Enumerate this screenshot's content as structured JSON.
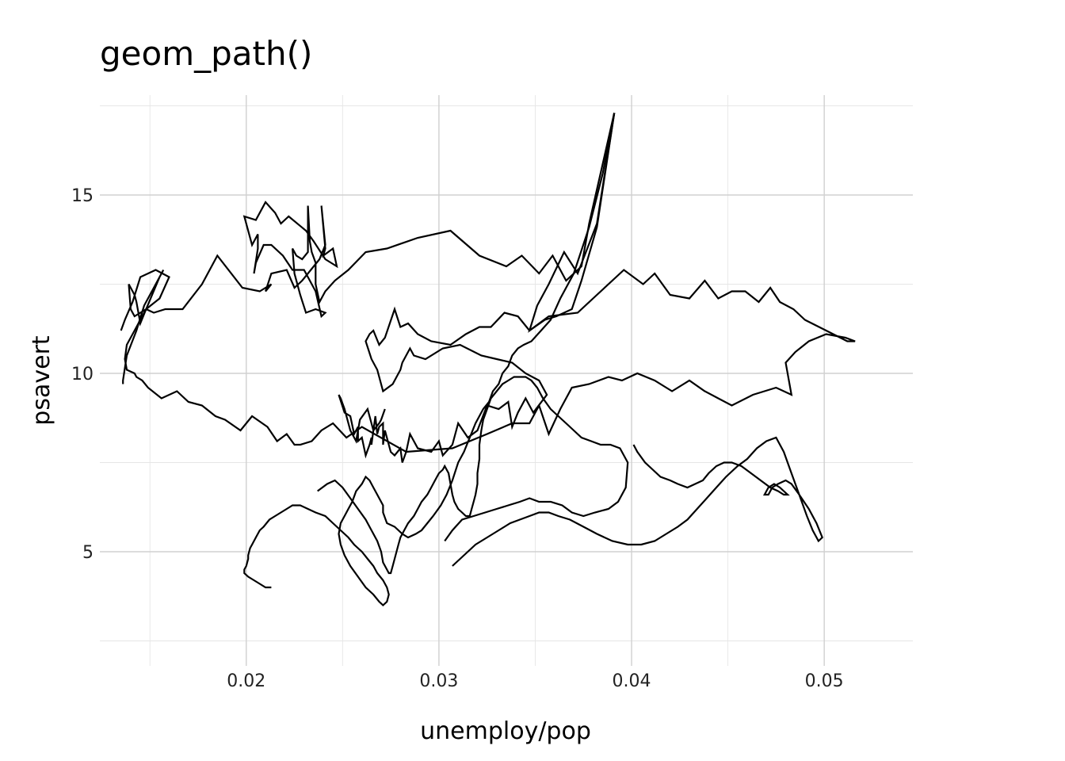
{
  "chart_data": {
    "type": "line",
    "title": "geom_path()",
    "xlabel": "unemploy/pop",
    "ylabel": "psavert",
    "xlim": [
      0.0124,
      0.0546
    ],
    "ylim": [
      1.8,
      17.8
    ],
    "x_ticks": [
      {
        "value": 0.02,
        "label": "0.02"
      },
      {
        "value": 0.03,
        "label": "0.03"
      },
      {
        "value": 0.04,
        "label": "0.04"
      },
      {
        "value": 0.05,
        "label": "0.05"
      }
    ],
    "y_ticks": [
      {
        "value": 5,
        "label": "5"
      },
      {
        "value": 10,
        "label": "10"
      },
      {
        "value": 15,
        "label": "15"
      }
    ],
    "x_minor": [
      0.015,
      0.025,
      0.035,
      0.045
    ],
    "y_minor": [
      2.5,
      7.5,
      12.5,
      17.5
    ],
    "grid": true,
    "legend": "none",
    "series": [
      {
        "color": "#000000",
        "x": [
          0.0391,
          0.0382,
          0.0372,
          0.0365,
          0.0357,
          0.0351,
          0.0347,
          0.0357,
          0.0372,
          0.038,
          0.0396,
          0.0406,
          0.0412,
          0.042,
          0.043,
          0.0438,
          0.0445,
          0.0452,
          0.0459,
          0.0466,
          0.0472,
          0.0477,
          0.0484,
          0.049,
          0.0501,
          0.0512,
          0.0516,
          0.0511,
          0.0501,
          0.0492,
          0.0485,
          0.048,
          0.0483,
          0.0475,
          0.0463,
          0.0452,
          0.0445,
          0.0438,
          0.043,
          0.0421,
          0.0412,
          0.0403,
          0.0395,
          0.0388,
          0.0378,
          0.0369,
          0.0363,
          0.0357,
          0.0352,
          0.0347,
          0.0338,
          0.0325,
          0.0307,
          0.0283,
          0.026,
          0.0252,
          0.0245,
          0.0239,
          0.0234,
          0.0228,
          0.0225,
          0.0221,
          0.0216,
          0.0211,
          0.0203,
          0.0197,
          0.0189,
          0.0184,
          0.0177,
          0.017,
          0.0164,
          0.0156,
          0.0149,
          0.0146,
          0.0143,
          0.0142,
          0.0138,
          0.0137,
          0.0138,
          0.0142,
          0.0148,
          0.0155,
          0.016,
          0.0153,
          0.0145,
          0.0141,
          0.0137,
          0.0135
        ],
        "y": [
          17.3,
          14.2,
          12.8,
          13.4,
          12.5,
          11.9,
          11.2,
          11.6,
          11.7,
          12.1,
          12.9,
          12.5,
          12.8,
          12.2,
          12.1,
          12.6,
          12.1,
          12.3,
          12.3,
          12.0,
          12.4,
          12.0,
          11.8,
          11.5,
          11.2,
          10.9,
          10.9,
          11.0,
          11.1,
          10.9,
          10.6,
          10.3,
          9.4,
          9.6,
          9.4,
          9.1,
          9.3,
          9.5,
          9.8,
          9.5,
          9.8,
          10.0,
          9.8,
          9.9,
          9.7,
          9.6,
          9.0,
          8.3,
          9.1,
          8.6,
          8.6,
          8.3,
          7.9,
          7.8,
          8.5,
          8.2,
          8.6,
          8.4,
          8.1,
          8.0,
          8.0,
          8.3,
          8.1,
          8.5,
          8.8,
          8.4,
          8.7,
          8.8,
          9.1,
          9.2,
          9.5,
          9.3,
          9.6,
          9.8,
          9.9,
          10.0,
          10.1,
          10.4,
          10.8,
          11.2,
          11.8,
          12.1,
          12.7,
          12.9,
          12.7,
          12.0,
          11.5,
          11.2
        ]
      },
      {
        "color": "#000000",
        "x": [
          0.0391,
          0.0378,
          0.0374,
          0.0366,
          0.0359,
          0.0352,
          0.0343,
          0.0335,
          0.0321,
          0.0306,
          0.0289,
          0.0273,
          0.0262,
          0.0253,
          0.0246,
          0.0241,
          0.0238,
          0.0236,
          0.0236,
          0.0234,
          0.0233,
          0.0232,
          0.0232,
          0.0229,
          0.0226,
          0.0224,
          0.0225,
          0.0228,
          0.0231,
          0.0236,
          0.0241,
          0.0239,
          0.0236,
          0.023,
          0.0224,
          0.0219,
          0.0213,
          0.0209,
          0.0205,
          0.0204,
          0.0206,
          0.0206,
          0.0203,
          0.0199,
          0.0199,
          0.0205,
          0.021,
          0.0215,
          0.0218,
          0.0222,
          0.0231,
          0.0235,
          0.0241,
          0.0247,
          0.0245,
          0.024,
          0.0241,
          0.0239,
          0.0241,
          0.0238,
          0.0229,
          0.0225,
          0.0221,
          0.0213,
          0.021,
          0.0213,
          0.0207,
          0.0198,
          0.0185,
          0.0177,
          0.0167,
          0.0158,
          0.0152,
          0.0148,
          0.0145,
          0.0143,
          0.0142,
          0.0139,
          0.014,
          0.0142,
          0.0148,
          0.0155,
          0.0157,
          0.0152,
          0.0147,
          0.0143,
          0.0138,
          0.0136,
          0.0136
        ],
        "y": [
          17.3,
          14.2,
          13.0,
          12.6,
          13.3,
          12.8,
          13.3,
          13.0,
          13.3,
          14.0,
          13.8,
          13.5,
          13.4,
          12.9,
          12.6,
          12.3,
          12.0,
          12.5,
          13.1,
          13.4,
          13.7,
          14.7,
          13.4,
          13.2,
          13.3,
          13.5,
          12.8,
          12.2,
          11.7,
          11.8,
          11.7,
          11.6,
          12.3,
          12.9,
          12.9,
          13.3,
          13.6,
          13.6,
          13.1,
          12.8,
          13.5,
          13.9,
          13.6,
          14.4,
          14.4,
          14.3,
          14.8,
          14.5,
          14.2,
          14.4,
          14.0,
          13.7,
          13.2,
          13.0,
          13.5,
          13.3,
          13.5,
          14.7,
          13.6,
          13.2,
          12.6,
          12.4,
          12.9,
          12.8,
          12.3,
          12.5,
          12.3,
          12.4,
          13.3,
          12.5,
          11.8,
          11.8,
          11.7,
          11.8,
          11.4,
          12.0,
          12.2,
          12.5,
          11.8,
          11.6,
          11.8,
          12.7,
          12.9,
          12.4,
          11.9,
          11.2,
          10.5,
          9.8,
          9.7
        ]
      },
      {
        "color": "#000000",
        "x": [
          0.0391,
          0.0382,
          0.0374,
          0.0369,
          0.0361,
          0.0355,
          0.0347,
          0.0341,
          0.0334,
          0.0327,
          0.0321,
          0.0314,
          0.0306,
          0.0296,
          0.0289,
          0.0284,
          0.028,
          0.0277,
          0.0272,
          0.0269,
          0.0266,
          0.0264,
          0.0262,
          0.0265,
          0.0268,
          0.0271,
          0.0276,
          0.028,
          0.0281,
          0.0285,
          0.0287,
          0.0293,
          0.0302,
          0.0311,
          0.0322,
          0.033,
          0.0338,
          0.0345,
          0.0352,
          0.0356,
          0.0349,
          0.0345,
          0.0341,
          0.0338,
          0.0336,
          0.0331,
          0.0325,
          0.032,
          0.0315,
          0.031,
          0.0307,
          0.0302,
          0.03,
          0.0296,
          0.0289,
          0.0285,
          0.0283,
          0.0281,
          0.028,
          0.0277,
          0.0275,
          0.0272,
          0.0271,
          0.0271,
          0.0269,
          0.0268,
          0.0267,
          0.0266,
          0.0265,
          0.0265,
          0.0264,
          0.0262,
          0.026,
          0.0258,
          0.0258,
          0.0256,
          0.0254,
          0.0251,
          0.0248,
          0.0249,
          0.0251,
          0.0254,
          0.0257,
          0.0259,
          0.0263,
          0.0266,
          0.0269,
          0.027,
          0.0272
        ],
        "y": [
          17.3,
          14.1,
          12.6,
          11.8,
          11.6,
          11.5,
          11.2,
          11.6,
          11.7,
          11.3,
          11.3,
          11.1,
          10.8,
          10.9,
          11.1,
          11.4,
          11.3,
          11.8,
          11.0,
          10.8,
          11.2,
          11.1,
          10.9,
          10.4,
          10.1,
          9.5,
          9.7,
          10.1,
          10.3,
          10.7,
          10.5,
          10.4,
          10.7,
          10.8,
          10.5,
          10.4,
          10.3,
          10.0,
          9.8,
          9.4,
          8.9,
          9.3,
          8.9,
          8.5,
          9.2,
          9.0,
          9.1,
          8.4,
          8.2,
          8.6,
          8.0,
          7.7,
          8.1,
          7.8,
          7.9,
          8.3,
          7.8,
          7.5,
          7.9,
          7.7,
          7.8,
          8.4,
          8.0,
          8.6,
          8.5,
          8.3,
          8.8,
          8.4,
          8.0,
          8.2,
          8.0,
          7.7,
          8.2,
          8.1,
          8.5,
          8.3,
          8.8,
          8.9,
          9.4,
          9.3,
          9.0,
          8.4,
          8.1,
          8.7,
          9.0,
          8.4,
          8.6,
          8.7,
          9.0
        ]
      },
      {
        "color": "#000000",
        "x": [
          0.0391,
          0.0385,
          0.0378,
          0.037,
          0.0363,
          0.0358,
          0.0353,
          0.0348,
          0.0344,
          0.0341,
          0.0338,
          0.0336,
          0.0333,
          0.0331,
          0.0328,
          0.0326,
          0.0323,
          0.0319,
          0.0316,
          0.0313,
          0.031,
          0.0307,
          0.0304,
          0.0301,
          0.0297,
          0.0294,
          0.0291,
          0.0288,
          0.0284,
          0.0281,
          0.0277,
          0.0273,
          0.0271,
          0.0271,
          0.0268,
          0.0266,
          0.0264,
          0.0262,
          0.026,
          0.0257,
          0.0255,
          0.0253,
          0.0251,
          0.0249,
          0.0248,
          0.0249,
          0.0251,
          0.0254,
          0.0258,
          0.0262,
          0.0266,
          0.0269,
          0.0271,
          0.0273,
          0.0274,
          0.0273,
          0.0271,
          0.0268,
          0.0266,
          0.0263,
          0.026,
          0.0256,
          0.0253,
          0.0249,
          0.0245,
          0.0241,
          0.0236,
          0.0232,
          0.0228,
          0.0224,
          0.0221,
          0.0218,
          0.0215,
          0.0212,
          0.0209,
          0.0207,
          0.0205,
          0.0203,
          0.0202,
          0.0201,
          0.0201,
          0.02,
          0.0199,
          0.0199,
          0.0201,
          0.0204,
          0.0207,
          0.021,
          0.0213
        ],
        "y": [
          17.3,
          15.6,
          14.1,
          12.8,
          12.1,
          11.5,
          11.2,
          10.9,
          10.8,
          10.7,
          10.5,
          10.2,
          10.0,
          9.7,
          9.5,
          9.2,
          9.0,
          8.6,
          8.2,
          7.8,
          7.5,
          7.0,
          6.6,
          6.3,
          6.0,
          5.8,
          5.6,
          5.5,
          5.4,
          5.5,
          5.7,
          5.8,
          6.1,
          6.3,
          6.6,
          6.8,
          7.0,
          7.1,
          6.9,
          6.7,
          6.4,
          6.2,
          6.0,
          5.8,
          5.5,
          5.2,
          4.9,
          4.6,
          4.3,
          4.0,
          3.8,
          3.6,
          3.5,
          3.6,
          3.8,
          4.0,
          4.2,
          4.4,
          4.6,
          4.8,
          5.0,
          5.2,
          5.4,
          5.6,
          5.8,
          6.0,
          6.1,
          6.2,
          6.3,
          6.3,
          6.2,
          6.1,
          6.0,
          5.9,
          5.7,
          5.6,
          5.4,
          5.2,
          5.1,
          4.9,
          4.8,
          4.6,
          4.5,
          4.4,
          4.3,
          4.2,
          4.1,
          4.0,
          4.0
        ]
      },
      {
        "color": "#000000",
        "x": [
          0.0237,
          0.0242,
          0.0246,
          0.025,
          0.0254,
          0.0258,
          0.0262,
          0.0265,
          0.0268,
          0.027,
          0.0271,
          0.0273,
          0.0274,
          0.0275,
          0.0276,
          0.0277,
          0.0278,
          0.0279,
          0.028,
          0.0282,
          0.0284,
          0.0287,
          0.0289,
          0.0291,
          0.0294,
          0.0296,
          0.0298,
          0.03,
          0.0302,
          0.0303,
          0.0305,
          0.0306,
          0.0307,
          0.0308,
          0.031,
          0.0312,
          0.0314,
          0.0316,
          0.0317,
          0.0318,
          0.0319,
          0.032,
          0.032,
          0.0321,
          0.0321,
          0.0322,
          0.0323,
          0.0325,
          0.0327,
          0.033,
          0.0333,
          0.0336,
          0.0339,
          0.0342,
          0.0345,
          0.0348,
          0.0351,
          0.0354,
          0.0358,
          0.0362,
          0.0366,
          0.037,
          0.0374,
          0.0379,
          0.0384,
          0.0389,
          0.0394,
          0.0398,
          0.0397,
          0.0393,
          0.0388,
          0.0381,
          0.0375,
          0.0369,
          0.0364,
          0.0358,
          0.0352,
          0.0347,
          0.0342,
          0.0336,
          0.033,
          0.0324,
          0.0318,
          0.0312,
          0.0307,
          0.0303
        ],
        "y": [
          6.7,
          6.9,
          7.0,
          6.8,
          6.5,
          6.2,
          5.9,
          5.6,
          5.3,
          5.0,
          4.7,
          4.5,
          4.4,
          4.4,
          4.6,
          4.8,
          5.0,
          5.2,
          5.4,
          5.6,
          5.8,
          6.0,
          6.2,
          6.4,
          6.6,
          6.8,
          7.0,
          7.2,
          7.3,
          7.4,
          7.2,
          6.9,
          6.6,
          6.4,
          6.2,
          6.1,
          6.0,
          6.0,
          6.2,
          6.4,
          6.6,
          6.9,
          7.2,
          7.6,
          8.0,
          8.4,
          8.7,
          9.0,
          9.3,
          9.5,
          9.7,
          9.8,
          9.9,
          9.9,
          9.9,
          9.8,
          9.6,
          9.3,
          9.0,
          8.8,
          8.6,
          8.4,
          8.2,
          8.1,
          8.0,
          8.0,
          7.9,
          7.5,
          6.8,
          6.4,
          6.2,
          6.1,
          6.0,
          6.1,
          6.3,
          6.4,
          6.4,
          6.5,
          6.4,
          6.3,
          6.2,
          6.1,
          6.0,
          5.9,
          5.6,
          5.3
        ]
      },
      {
        "color": "#000000",
        "x": [
          0.0307,
          0.0313,
          0.0319,
          0.0325,
          0.0331,
          0.0337,
          0.0342,
          0.0347,
          0.0352,
          0.0357,
          0.0362,
          0.0368,
          0.0375,
          0.0382,
          0.039,
          0.0398,
          0.0405,
          0.0412,
          0.0418,
          0.0424,
          0.0429,
          0.0434,
          0.0439,
          0.0444,
          0.0449,
          0.0455,
          0.046,
          0.0465,
          0.047,
          0.0475,
          0.0479,
          0.0483,
          0.0487,
          0.0491,
          0.0494,
          0.0497,
          0.0499,
          0.0496,
          0.0492,
          0.0487,
          0.0483,
          0.048,
          0.0476,
          0.0473,
          0.0471,
          0.0469,
          0.0471,
          0.0474,
          0.0477,
          0.0479,
          0.0481,
          0.0479,
          0.0476,
          0.0472,
          0.0467,
          0.0462,
          0.0457,
          0.0452,
          0.0448,
          0.0444,
          0.044,
          0.0437,
          0.0433,
          0.0429,
          0.0424,
          0.042,
          0.0415,
          0.0411,
          0.0407,
          0.0403,
          0.0401
        ],
        "y": [
          4.6,
          4.9,
          5.2,
          5.4,
          5.6,
          5.8,
          5.9,
          6.0,
          6.1,
          6.1,
          6.0,
          5.9,
          5.7,
          5.5,
          5.3,
          5.2,
          5.2,
          5.3,
          5.5,
          5.7,
          5.9,
          6.2,
          6.5,
          6.8,
          7.1,
          7.4,
          7.6,
          7.9,
          8.1,
          8.2,
          7.8,
          7.2,
          6.6,
          6.0,
          5.6,
          5.3,
          5.4,
          5.8,
          6.2,
          6.6,
          6.9,
          7.0,
          6.9,
          6.8,
          6.6,
          6.6,
          6.8,
          6.9,
          6.8,
          6.7,
          6.6,
          6.6,
          6.7,
          6.8,
          7.0,
          7.2,
          7.4,
          7.5,
          7.5,
          7.4,
          7.2,
          7.0,
          6.9,
          6.8,
          6.9,
          7.0,
          7.1,
          7.3,
          7.5,
          7.8,
          8.0
        ]
      }
    ]
  }
}
